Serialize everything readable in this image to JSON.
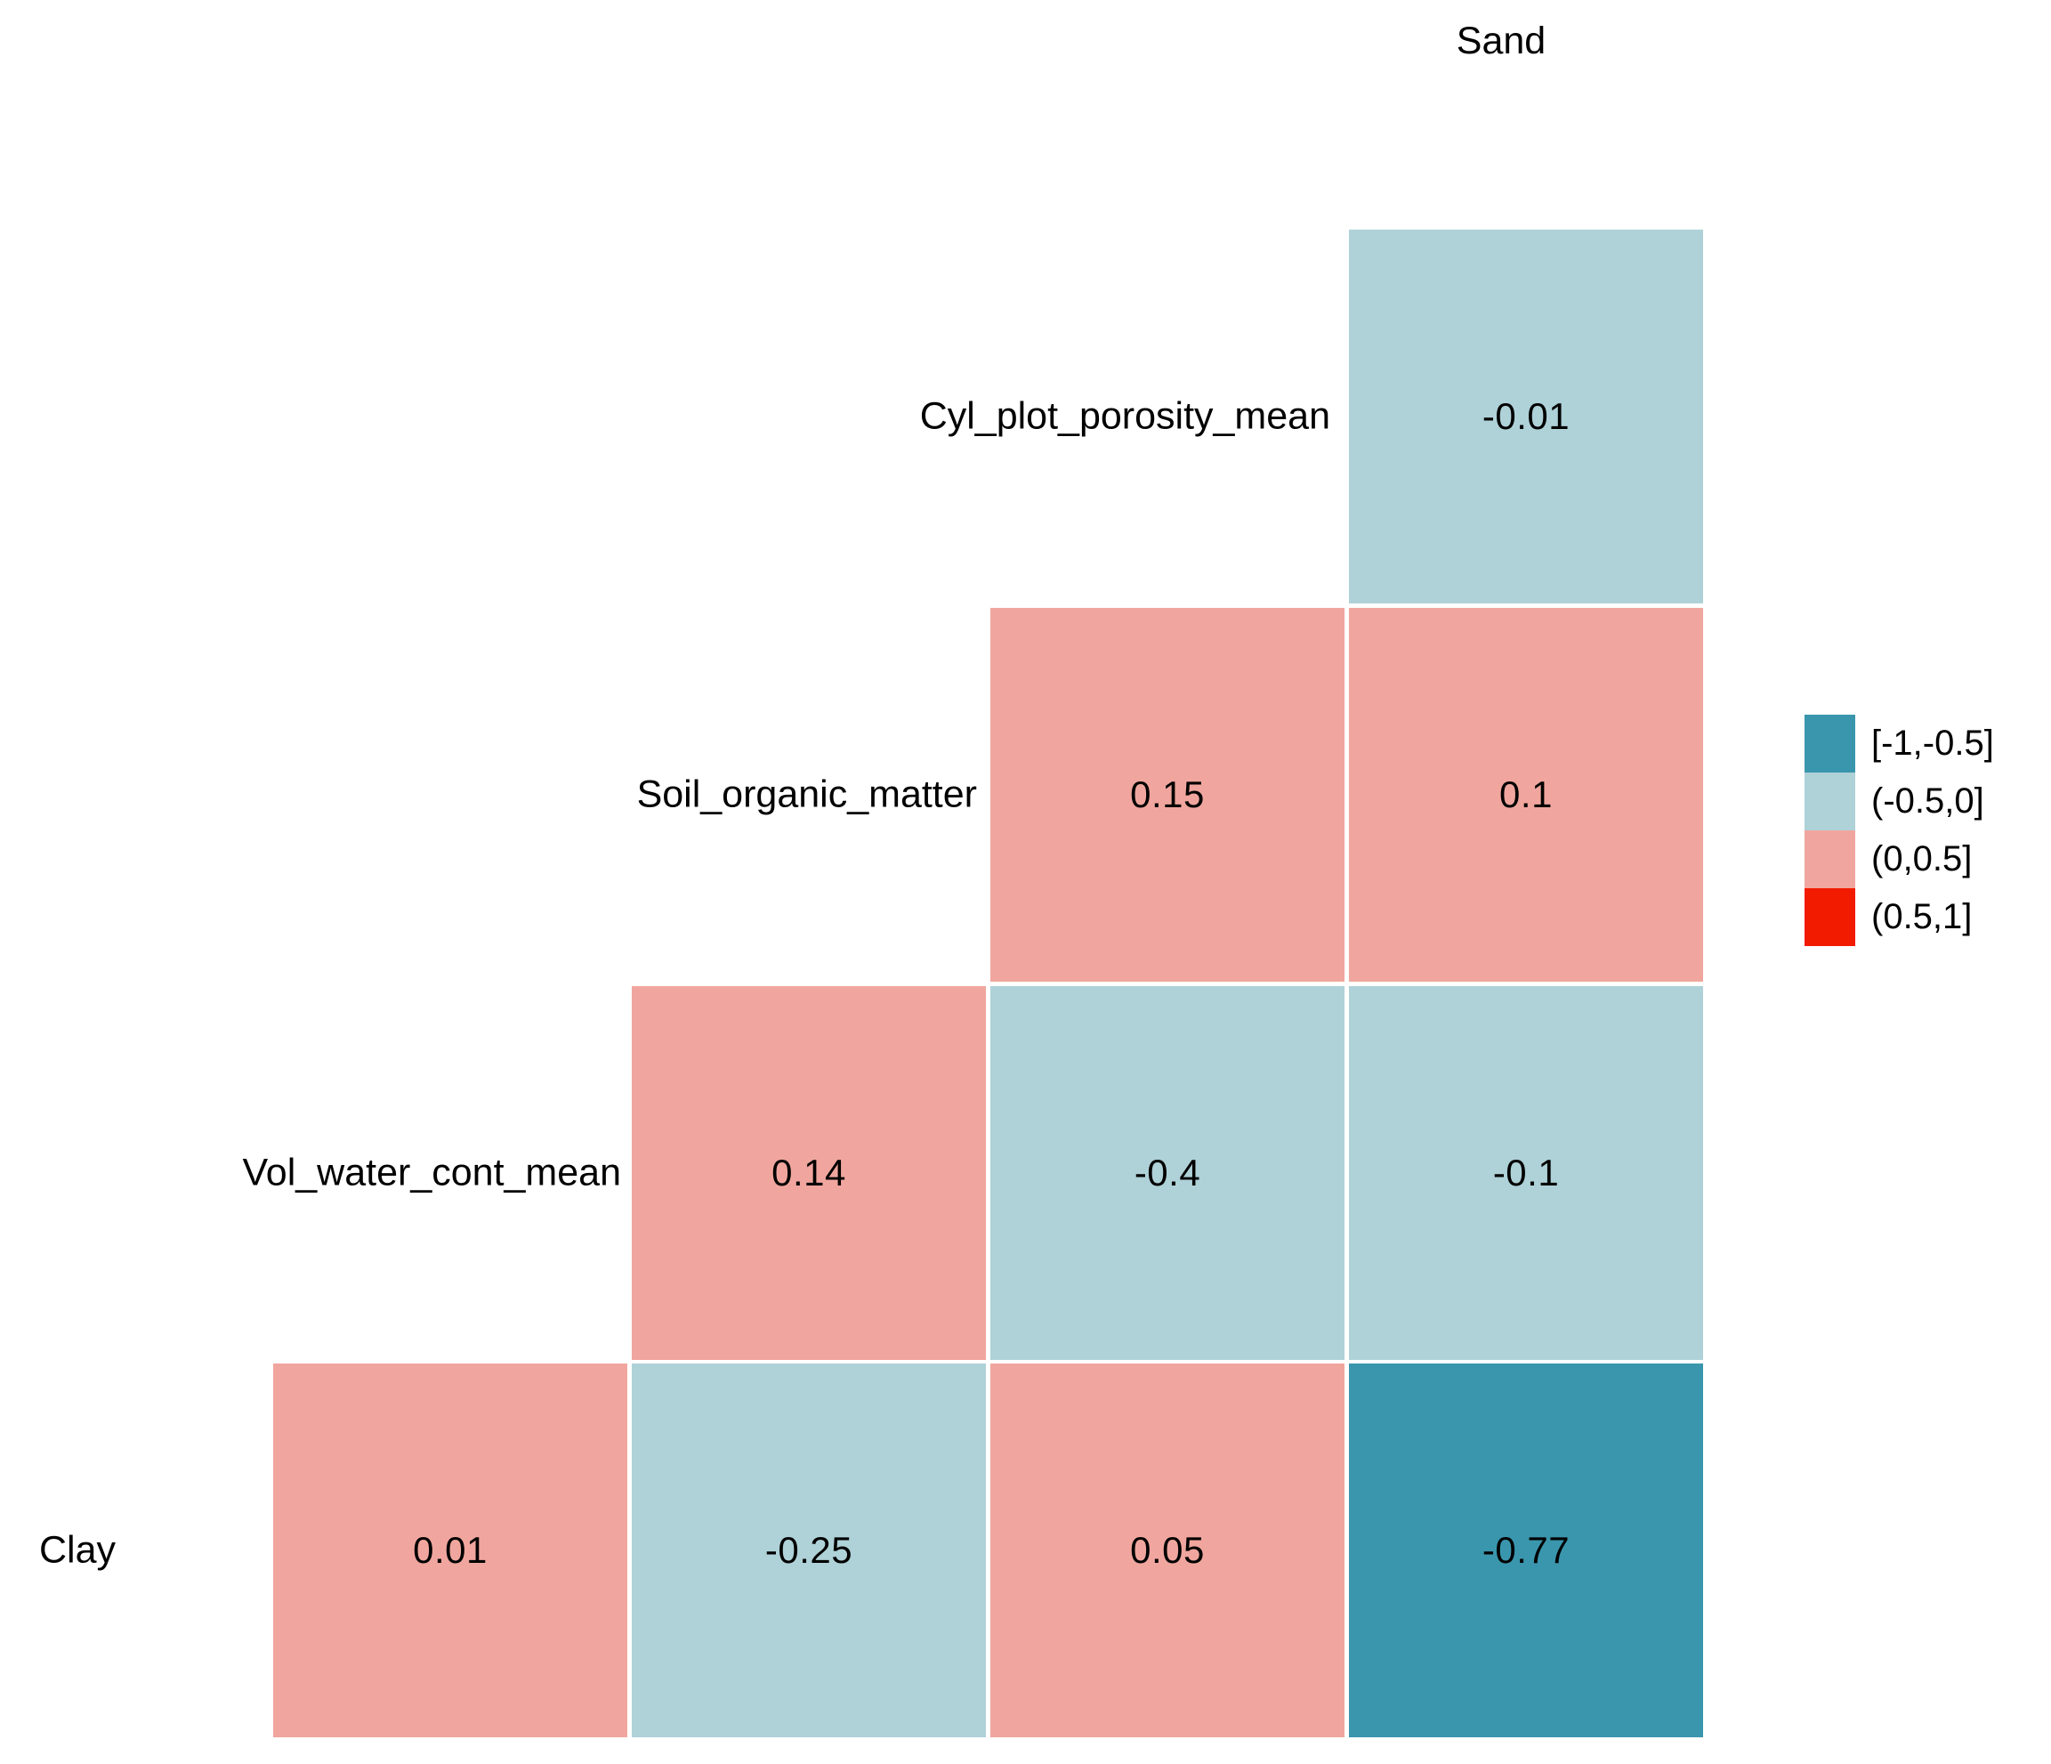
{
  "page": {
    "background_color": "#ffffff",
    "text_color": "#000000"
  },
  "chart_data": {
    "type": "heatmap",
    "subtype": "correlation_matrix_lower_triangle",
    "title": "",
    "column_header": "Sand",
    "variables": [
      "Clay",
      "Vol_water_cont_mean",
      "Soil_organic_matter",
      "Cyl_plot_porosity_mean",
      "Sand"
    ],
    "grid": {
      "n_cols": 4,
      "n_rows": 4,
      "gridlines": false
    },
    "rows": [
      {
        "label": "Cyl_plot_porosity_mean",
        "cells": [
          {
            "col": 3,
            "value": -0.01,
            "label": "-0.01",
            "bin": "(-0.5,0]"
          }
        ]
      },
      {
        "label": "Soil_organic_matter",
        "cells": [
          {
            "col": 2,
            "value": 0.15,
            "label": "0.15",
            "bin": "(0,0.5]"
          },
          {
            "col": 3,
            "value": 0.1,
            "label": "0.1",
            "bin": "(0,0.5]"
          }
        ]
      },
      {
        "label": "Vol_water_cont_mean",
        "cells": [
          {
            "col": 1,
            "value": 0.14,
            "label": "0.14",
            "bin": "(0,0.5]"
          },
          {
            "col": 2,
            "value": -0.4,
            "label": "-0.4",
            "bin": "(-0.5,0]"
          },
          {
            "col": 3,
            "value": -0.1,
            "label": "-0.1",
            "bin": "(-0.5,0]"
          }
        ]
      },
      {
        "label": "Clay",
        "cells": [
          {
            "col": 0,
            "value": 0.01,
            "label": "0.01",
            "bin": "(0,0.5]"
          },
          {
            "col": 1,
            "value": -0.25,
            "label": "-0.25",
            "bin": "(-0.5,0]"
          },
          {
            "col": 2,
            "value": 0.05,
            "label": "0.05",
            "bin": "(0,0.5]"
          },
          {
            "col": 3,
            "value": -0.77,
            "label": "-0.77",
            "bin": "[-1,-0.5]"
          }
        ]
      }
    ],
    "bin_colors": {
      "[-1,-0.5]": "#3A96AD",
      "(-0.5,0]": "#AFD1D8",
      "(0,0.5]": "#F0A69E",
      "(0.5,1]": "#F21B00"
    },
    "legend": {
      "position": "right",
      "entries": [
        {
          "label": "[-1,-0.5]",
          "color": "#3A96AD"
        },
        {
          "label": "(-0.5,0]",
          "color": "#AFD1D8"
        },
        {
          "label": "(0,0.5]",
          "color": "#F0A69E"
        },
        {
          "label": "(0.5,1]",
          "color": "#F21B00"
        }
      ]
    }
  }
}
